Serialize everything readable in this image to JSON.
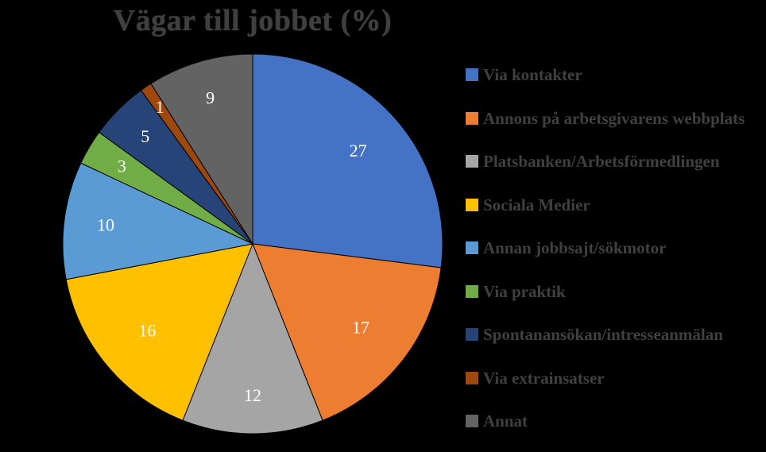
{
  "chart_data": {
    "type": "pie",
    "title": "Vägar till jobbet (%)",
    "categories": [
      "Via kontakter",
      "Annons på arbetsgivarens webbplats",
      "Platsbanken/Arbetsförmedlingen",
      "Sociala Medier",
      "Annan jobbsajt/sökmotor",
      "Via praktik",
      "Spontanansökan/intresseanmälan",
      "Via extrainsatser",
      "Annat"
    ],
    "values": [
      27,
      17,
      12,
      16,
      10,
      3,
      5,
      1,
      9
    ],
    "colors": [
      "#4472c4",
      "#ed7d31",
      "#a5a5a5",
      "#ffc000",
      "#5b9bd5",
      "#70ad47",
      "#264478",
      "#9e480e",
      "#636363"
    ],
    "data_labels": [
      "27",
      "17",
      "12",
      "16",
      "10",
      "3",
      "5",
      "1",
      "9"
    ],
    "start_angle_deg": 0,
    "direction": "clockwise",
    "legend": "right"
  }
}
